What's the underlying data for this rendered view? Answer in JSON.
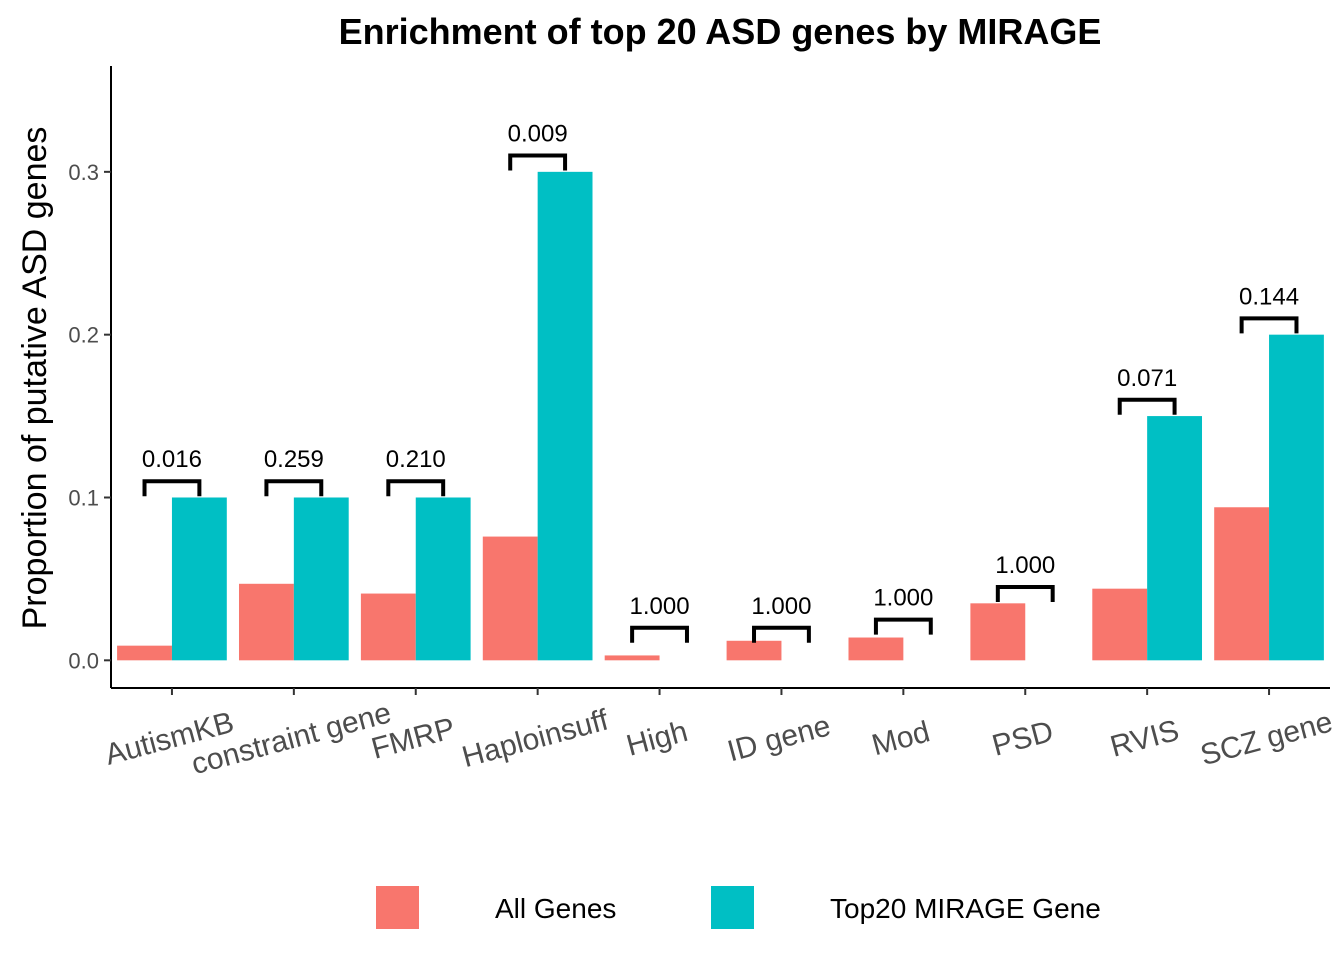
{
  "chart_data": {
    "type": "bar",
    "title": "Enrichment of top 20 ASD genes by MIRAGE",
    "xlabel": "",
    "ylabel": "Proportion of putative ASD genes",
    "ylim": [
      -0.017,
      0.365
    ],
    "yticks": [
      0.0,
      0.1,
      0.2,
      0.3
    ],
    "ytick_labels": [
      "0.0",
      "0.1",
      "0.2",
      "0.3"
    ],
    "grid": false,
    "legend_position": "bottom",
    "categories": [
      "AutismKB",
      "constraint gene",
      "FMRP",
      "Haploinsuff",
      "High",
      "ID gene",
      "Mod",
      "PSD",
      "RVIS",
      "SCZ gene"
    ],
    "series": [
      {
        "name": "All Genes",
        "color": "#F8766D",
        "values": [
          0.009,
          0.047,
          0.041,
          0.076,
          0.003,
          0.012,
          0.014,
          0.035,
          0.044,
          0.094
        ]
      },
      {
        "name": "Top20 MIRAGE Gene",
        "color": "#00BFC4",
        "values": [
          0.1,
          0.1,
          0.1,
          0.3,
          0.0,
          0.0,
          0.0,
          0.0,
          0.15,
          0.2
        ]
      }
    ],
    "annotations": [
      {
        "category": "AutismKB",
        "label": "0.016",
        "y": 0.11
      },
      {
        "category": "constraint gene",
        "label": "0.259",
        "y": 0.11
      },
      {
        "category": "FMRP",
        "label": "0.210",
        "y": 0.11
      },
      {
        "category": "Haploinsuff",
        "label": "0.009",
        "y": 0.31
      },
      {
        "category": "High",
        "label": "1.000",
        "y": 0.02
      },
      {
        "category": "ID gene",
        "label": "1.000",
        "y": 0.02
      },
      {
        "category": "Mod",
        "label": "1.000",
        "y": 0.025
      },
      {
        "category": "PSD",
        "label": "1.000",
        "y": 0.045
      },
      {
        "category": "RVIS",
        "label": "0.071",
        "y": 0.16
      },
      {
        "category": "SCZ gene",
        "label": "0.144",
        "y": 0.21
      }
    ]
  }
}
